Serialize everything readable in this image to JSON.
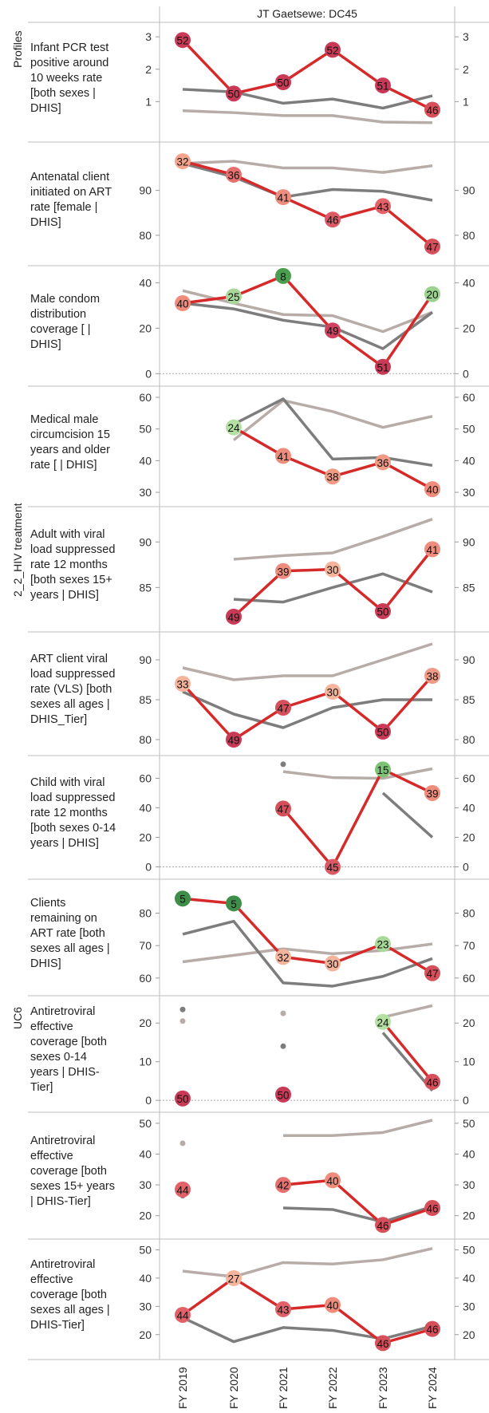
{
  "title": "JT Gaetsewe: DC45",
  "groups": [
    "Profiles",
    "2_2_HIV treatment",
    "UC6"
  ],
  "colors": {
    "red": "#d62a2a",
    "dark": "#7d7d7d",
    "light": "#b8aca9"
  },
  "chart_data": {
    "type": "line",
    "x": [
      "FY 2019",
      "FY 2020",
      "FY 2021",
      "FY 2022",
      "FY 2023",
      "FY 2024"
    ],
    "panels": [
      {
        "label": "Infant PCR test positive around 10 weeks rate [both sexes | DHIS]",
        "group": "Profiles",
        "ylim": [
          0.0,
          3.2
        ],
        "ticks": [
          1,
          2,
          3
        ],
        "zero_line": false,
        "series": [
          {
            "role": "main",
            "values": [
              2.9,
              1.25,
              1.6,
              2.6,
              1.5,
              0.75
            ],
            "labels": [
              "52",
              "50",
              "50",
              "52",
              "51",
              "46"
            ],
            "colors": [
              "#c93a56",
              "#c93a56",
              "#c93a56",
              "#c93a56",
              "#c93a56",
              "#d6505c"
            ]
          },
          {
            "role": "dark",
            "values": [
              1.38,
              1.3,
              0.95,
              1.08,
              0.8,
              1.18
            ]
          },
          {
            "role": "light",
            "values": [
              0.72,
              0.66,
              0.57,
              0.57,
              0.37,
              0.35
            ]
          }
        ]
      },
      {
        "label": "Antenatal client initiated on ART rate [female | DHIS]",
        "group": "Profiles",
        "ylim": [
          75,
          99
        ],
        "ticks": [
          80,
          90
        ],
        "zero_line": false,
        "series": [
          {
            "role": "main",
            "values": [
              96.5,
              93.5,
              88.5,
              83.5,
              86.5,
              77.5
            ],
            "labels": [
              "32",
              "36",
              "41",
              "46",
              "43",
              "47"
            ],
            "colors": [
              "#f6a58d",
              "#e6706e",
              "#ee8c7e",
              "#dc5a65",
              "#e3626a",
              "#d6505c"
            ]
          },
          {
            "role": "dark",
            "values": [
              96.0,
              93.0,
              88.5,
              90.2,
              89.8,
              87.8
            ]
          },
          {
            "role": "light",
            "values": [
              96.0,
              96.5,
              95.0,
              95.0,
              94.0,
              95.5
            ]
          }
        ]
      },
      {
        "label": "Male condom distribution coverage [ | DHIS]",
        "group": "Profiles",
        "ylim": [
          -2,
          44
        ],
        "ticks": [
          0,
          20,
          40
        ],
        "zero_line": true,
        "series": [
          {
            "role": "main",
            "values": [
              31,
              34,
              43,
              19,
              3,
              35
            ],
            "labels": [
              "40",
              "25",
              "8",
              "49",
              "51",
              "20"
            ],
            "colors": [
              "#f08c7c",
              "#a8d99a",
              "#4a9e4f",
              "#d04260",
              "#c93a56",
              "#9bd28e"
            ]
          },
          {
            "role": "dark",
            "values": [
              31,
              28.5,
              23.5,
              20.5,
              11,
              27
            ]
          },
          {
            "role": "light",
            "values": [
              36.5,
              31,
              26,
              25.5,
              18.5,
              27
            ]
          }
        ]
      },
      {
        "label": "Medical male circumcision 15 years and older rate [ | DHIS]",
        "group": "Profiles",
        "ylim": [
          28,
          61
        ],
        "ticks": [
          30,
          40,
          50,
          60
        ],
        "zero_line": false,
        "series": [
          {
            "role": "main",
            "values": [
              null,
              50.5,
              41.5,
              35,
              39.5,
              31
            ],
            "labels": [
              null,
              "24",
              "41",
              "38",
              "36",
              "40"
            ],
            "colors": [
              null,
              "#b4e1a3",
              "#ee8c7e",
              "#f19a86",
              "#f19a86",
              "#f08c7c"
            ]
          },
          {
            "role": "dark",
            "values": [
              null,
              51.5,
              59.5,
              40.5,
              41,
              38.5
            ]
          },
          {
            "role": "light",
            "values": [
              null,
              46.5,
              59,
              55.5,
              50.5,
              54
            ]
          }
        ]
      },
      {
        "label": "Adult with viral load suppressed rate 12 months [both sexes 15+ years | DHIS]",
        "group": "2_2_HIV treatment",
        "ylim": [
          81,
          93
        ],
        "ticks": [
          85,
          90
        ],
        "zero_line": false,
        "series": [
          {
            "role": "main",
            "values": [
              null,
              81.8,
              86.8,
              87.0,
              82.4,
              89.2
            ],
            "labels": [
              null,
              "49",
              "39",
              "30",
              "50",
              "41"
            ],
            "colors": [
              null,
              "#c93a56",
              "#ee8c7e",
              "#f6b49c",
              "#c93a56",
              "#ee8c7e"
            ]
          },
          {
            "role": "dark",
            "values": [
              null,
              83.7,
              83.4,
              85.0,
              86.5,
              84.5
            ]
          },
          {
            "role": "light",
            "values": [
              null,
              88.1,
              88.5,
              88.8,
              90.6,
              92.5
            ]
          }
        ]
      },
      {
        "label": "ART client viral load suppressed rate (VLS) [both sexes all ages | DHIS_Tier]",
        "group": "2_2_HIV treatment",
        "ylim": [
          79,
          92.5
        ],
        "ticks": [
          80,
          85,
          90
        ],
        "zero_line": false,
        "series": [
          {
            "role": "main",
            "values": [
              87.0,
              80.0,
              84.0,
              86.0,
              81.0,
              88.0
            ],
            "labels": [
              "33",
              "49",
              "47",
              "30",
              "50",
              "38"
            ],
            "colors": [
              "#f6b49c",
              "#c93a56",
              "#d6505c",
              "#f6b49c",
              "#c93a56",
              "#f19a86"
            ]
          },
          {
            "role": "dark",
            "values": [
              86.0,
              83.2,
              81.5,
              84.0,
              85.0,
              85.0
            ]
          },
          {
            "role": "light",
            "values": [
              89.0,
              87.5,
              88.0,
              88.0,
              90.0,
              92.0
            ]
          }
        ]
      },
      {
        "label": "Child with viral load suppressed rate 12 months [both sexes 0-14 years | DHIS]",
        "group": "2_2_HIV treatment",
        "ylim": [
          -3,
          70
        ],
        "ticks": [
          0,
          20,
          40,
          60
        ],
        "zero_line": true,
        "series": [
          {
            "role": "main",
            "values": [
              null,
              null,
              39.5,
              0,
              66,
              50
            ],
            "labels": [
              null,
              null,
              "47",
              "45",
              "15",
              "39"
            ],
            "colors": [
              null,
              null,
              "#d6505c",
              "#dc5a65",
              "#7cc374",
              "#f08c7c"
            ]
          },
          {
            "role": "dark",
            "values": [
              null,
              null,
              69.5,
              null,
              50,
              20
            ]
          },
          {
            "role": "light",
            "values": [
              null,
              null,
              64.5,
              60.5,
              60,
              66.5
            ]
          }
        ]
      },
      {
        "label": "Clients remaining on ART rate [both sexes all ages | DHIS]",
        "group": "2_2_HIV treatment",
        "ylim": [
          57,
          88
        ],
        "ticks": [
          60,
          70,
          80
        ],
        "zero_line": false,
        "series": [
          {
            "role": "main",
            "values": [
              84.5,
              83,
              66.5,
              64.5,
              70.5,
              61.5
            ],
            "labels": [
              "5",
              "5",
              "32",
              "30",
              "23",
              "47"
            ],
            "colors": [
              "#3e8e49",
              "#3e8e49",
              "#f6b49c",
              "#f6b49c",
              "#a8d99a",
              "#d6505c"
            ]
          },
          {
            "role": "dark",
            "values": [
              73.5,
              77.5,
              58.5,
              57.5,
              60.5,
              66
            ]
          },
          {
            "role": "light",
            "values": [
              65,
              67,
              69,
              67.5,
              68.5,
              70.5
            ]
          }
        ]
      },
      {
        "label": "Antiretroviral effective coverage [both sexes 0-14 years | DHIS-Tier]",
        "group": "UC6",
        "ylim": [
          -1,
          25
        ],
        "ticks": [
          0,
          10,
          20
        ],
        "zero_line": true,
        "series": [
          {
            "role": "main",
            "values": [
              0.5,
              null,
              1.5,
              null,
              20.3,
              4.8
            ],
            "labels": [
              "50",
              null,
              "50",
              null,
              "24",
              "46"
            ],
            "colors": [
              "#c93a56",
              null,
              "#c93a56",
              null,
              "#b4e1a3",
              "#d6505c"
            ]
          },
          {
            "role": "dark",
            "values": [
              23.5,
              null,
              14,
              null,
              17.5,
              2.5
            ]
          },
          {
            "role": "light",
            "values": [
              20.5,
              null,
              22.5,
              null,
              21.5,
              24.5
            ]
          }
        ]
      },
      {
        "label": "Antiretroviral effective coverage [both sexes 15+ years | DHIS-Tier]",
        "group": "UC6",
        "ylim": [
          15,
          51
        ],
        "ticks": [
          20,
          30,
          40,
          50
        ],
        "zero_line": false,
        "series": [
          {
            "role": "main",
            "values": [
              28.5,
              null,
              30,
              31.5,
              17,
              22.5
            ],
            "labels": [
              "44",
              null,
              "42",
              "40",
              "46",
              "46"
            ],
            "colors": [
              "#e3626a",
              null,
              "#e6706e",
              "#f08c7c",
              "#d6505c",
              "#d6505c"
            ]
          },
          {
            "role": "dark",
            "values": [
              26.5,
              null,
              22.5,
              22,
              18,
              23
            ]
          },
          {
            "role": "light",
            "values": [
              43.5,
              null,
              46,
              46,
              47,
              51
            ]
          }
        ]
      },
      {
        "label": "Antiretroviral effective coverage [both sexes all ages | DHIS-Tier]",
        "group": "UC6",
        "ylim": [
          14,
          51
        ],
        "ticks": [
          20,
          30,
          40,
          50
        ],
        "zero_line": false,
        "series": [
          {
            "role": "main",
            "values": [
              27,
              40,
              29,
              30.5,
              17,
              22
            ],
            "labels": [
              "44",
              "27",
              "43",
              "40",
              "46",
              "46"
            ],
            "colors": [
              "#e3626a",
              "#f6b49c",
              "#e3626a",
              "#f08c7c",
              "#d6505c",
              "#d6505c"
            ]
          },
          {
            "role": "dark",
            "values": [
              26,
              17.5,
              22.5,
              21.5,
              18.5,
              23
            ]
          },
          {
            "role": "light",
            "values": [
              42.5,
              40.5,
              45.5,
              45,
              46.5,
              50.5
            ]
          }
        ]
      }
    ]
  }
}
